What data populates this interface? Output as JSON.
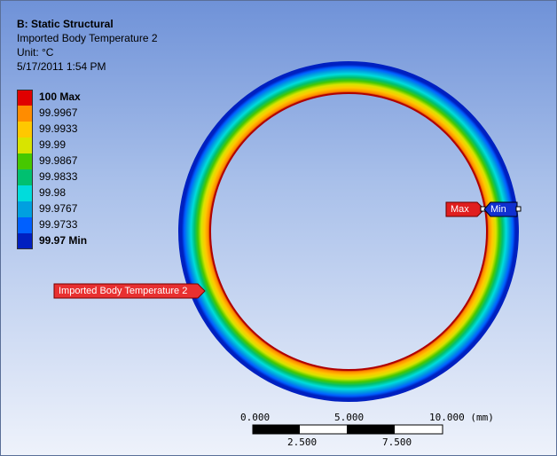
{
  "header": {
    "title": "B: Static Structural",
    "subtitle": "Imported Body Temperature 2",
    "unit": "Unit: °C",
    "timestamp": "5/17/2011 1:54 PM"
  },
  "legend": {
    "items": [
      {
        "label": "100 Max",
        "color": "#e00000",
        "bold": true
      },
      {
        "label": "99.9967",
        "color": "#ff8c00",
        "bold": false
      },
      {
        "label": "99.9933",
        "color": "#ffc800",
        "bold": false
      },
      {
        "label": "99.99",
        "color": "#d8e400",
        "bold": false
      },
      {
        "label": "99.9867",
        "color": "#46c800",
        "bold": false
      },
      {
        "label": "99.9833",
        "color": "#00c070",
        "bold": false
      },
      {
        "label": "99.98",
        "color": "#00dcdc",
        "bold": false
      },
      {
        "label": "99.9767",
        "color": "#00a0e0",
        "bold": false
      },
      {
        "label": "99.9733",
        "color": "#0060ff",
        "bold": false
      },
      {
        "label": "99.97 Min",
        "color": "#0020c0",
        "bold": true
      }
    ]
  },
  "probes": {
    "max_label": "Max",
    "min_label": "Min",
    "body_label": "Imported Body Temperature 2"
  },
  "scale_bar": {
    "top_labels": [
      "0.000",
      "5.000",
      "10.000 (mm)"
    ],
    "bottom_labels": [
      "2.500",
      "7.500"
    ]
  },
  "colors": {
    "max_tag": "#e01e1e",
    "min_tag": "#1030d0",
    "body_tag": "#e83030",
    "inner_edge": "#b00000"
  }
}
